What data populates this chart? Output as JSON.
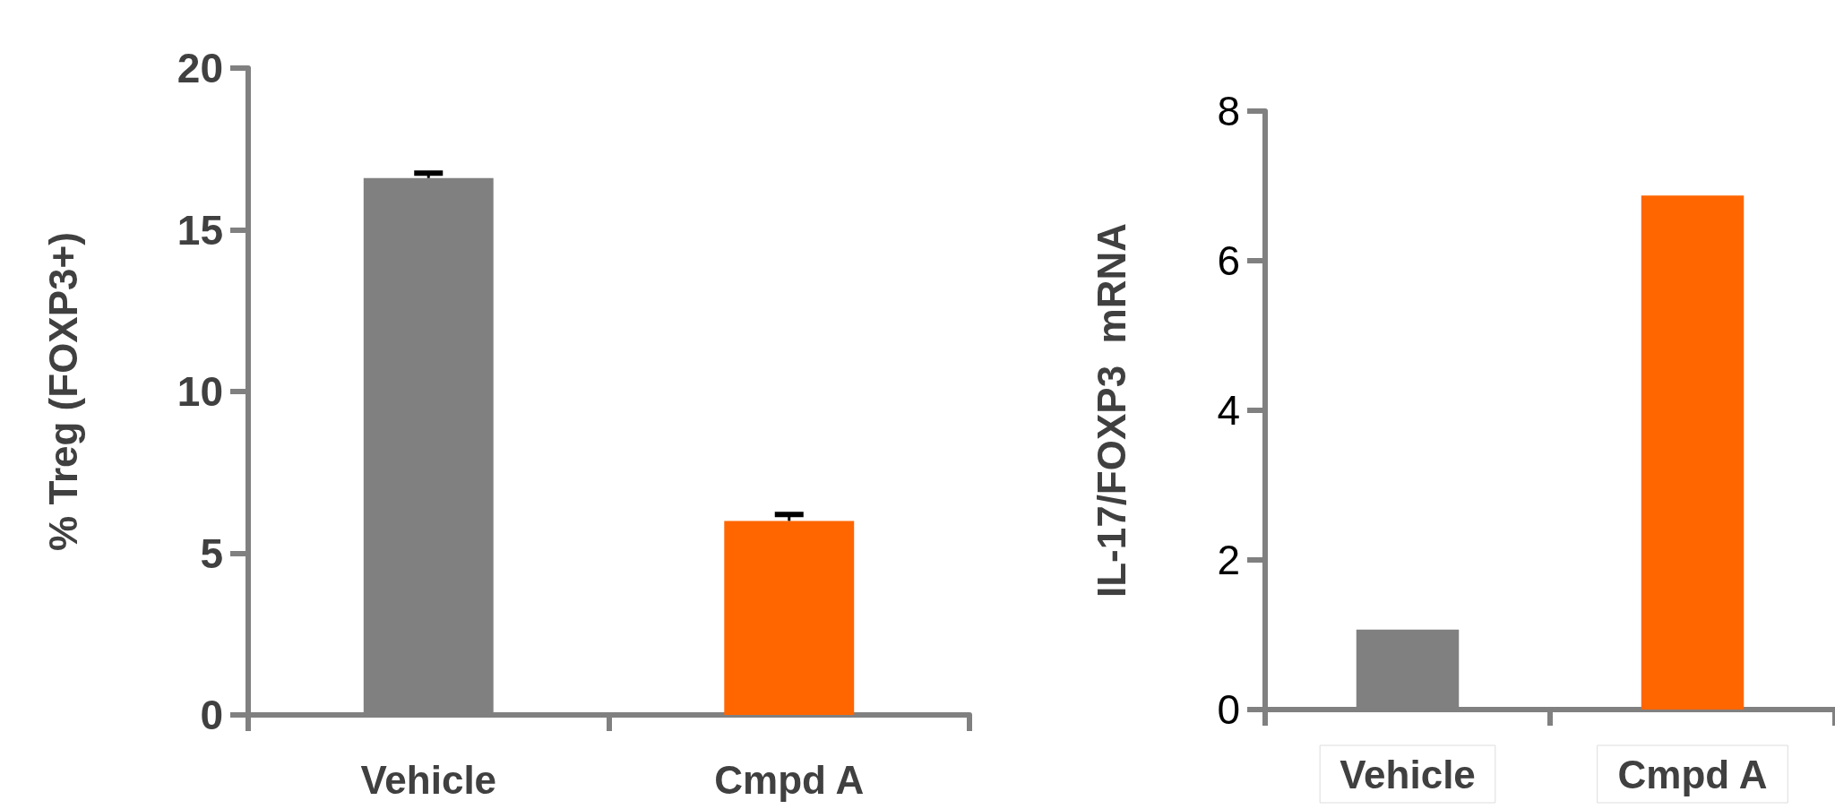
{
  "chart_data": [
    {
      "type": "bar",
      "ylabel": "% Treg (FOXP3+)",
      "categories": [
        "Vehicle",
        "Cmpd A"
      ],
      "values": [
        16.6,
        6.0
      ],
      "colors": [
        "#808080",
        "#ff6600"
      ],
      "errors": [
        0.15,
        0.2
      ],
      "ylim": [
        0,
        20
      ],
      "yticks": [
        0,
        5,
        10,
        15,
        20
      ],
      "grid": false
    },
    {
      "type": "bar",
      "ylabel": "IL-17/FOXP3  mRNA",
      "categories": [
        "Vehicle",
        "Cmpd A"
      ],
      "values": [
        1.07,
        6.87
      ],
      "colors": [
        "#808080",
        "#ff6600"
      ],
      "ylim": [
        0,
        8
      ],
      "yticks": [
        0,
        2,
        4,
        6,
        8
      ],
      "grid": false
    }
  ]
}
